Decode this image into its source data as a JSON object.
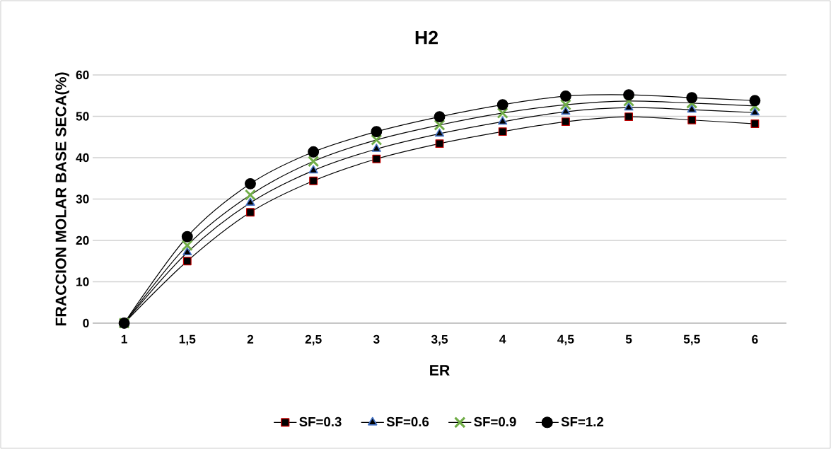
{
  "chart_data": {
    "type": "line",
    "title": "H2",
    "xlabel": "ER",
    "ylabel": "FRACCION MOLAR BASE SECA(%)",
    "categories": [
      "1",
      "1,5",
      "2",
      "2,5",
      "3",
      "3,5",
      "4",
      "4,5",
      "5",
      "5,5",
      "6"
    ],
    "series": [
      {
        "name": "SF=0.3",
        "color": "#c00000",
        "marker": "square",
        "values": [
          0,
          15,
          26.8,
          34.4,
          39.7,
          43.4,
          46.3,
          48.7,
          49.9,
          49.1,
          48.2
        ]
      },
      {
        "name": "SF=0.6",
        "color": "#4472c4",
        "marker": "triangle",
        "values": [
          0,
          17.1,
          29.1,
          36.9,
          42.1,
          45.8,
          48.7,
          51.1,
          52.1,
          51.6,
          50.9
        ]
      },
      {
        "name": "SF=0.9",
        "color": "#70ad47",
        "marker": "cross",
        "values": [
          0,
          18.8,
          31,
          39.1,
          44.3,
          47.9,
          50.8,
          52.8,
          53.7,
          53.2,
          52.5
        ]
      },
      {
        "name": "SF=1.2",
        "color": "#000000",
        "marker": "circle",
        "values": [
          0,
          20.9,
          33.7,
          41.4,
          46.3,
          49.9,
          52.8,
          54.9,
          55.2,
          54.5,
          53.8
        ]
      }
    ],
    "ylim": [
      0,
      60
    ],
    "yticks": [
      0,
      10,
      20,
      30,
      40,
      50,
      60
    ],
    "grid": "y",
    "legend": "bottom",
    "line_style": "solid"
  }
}
